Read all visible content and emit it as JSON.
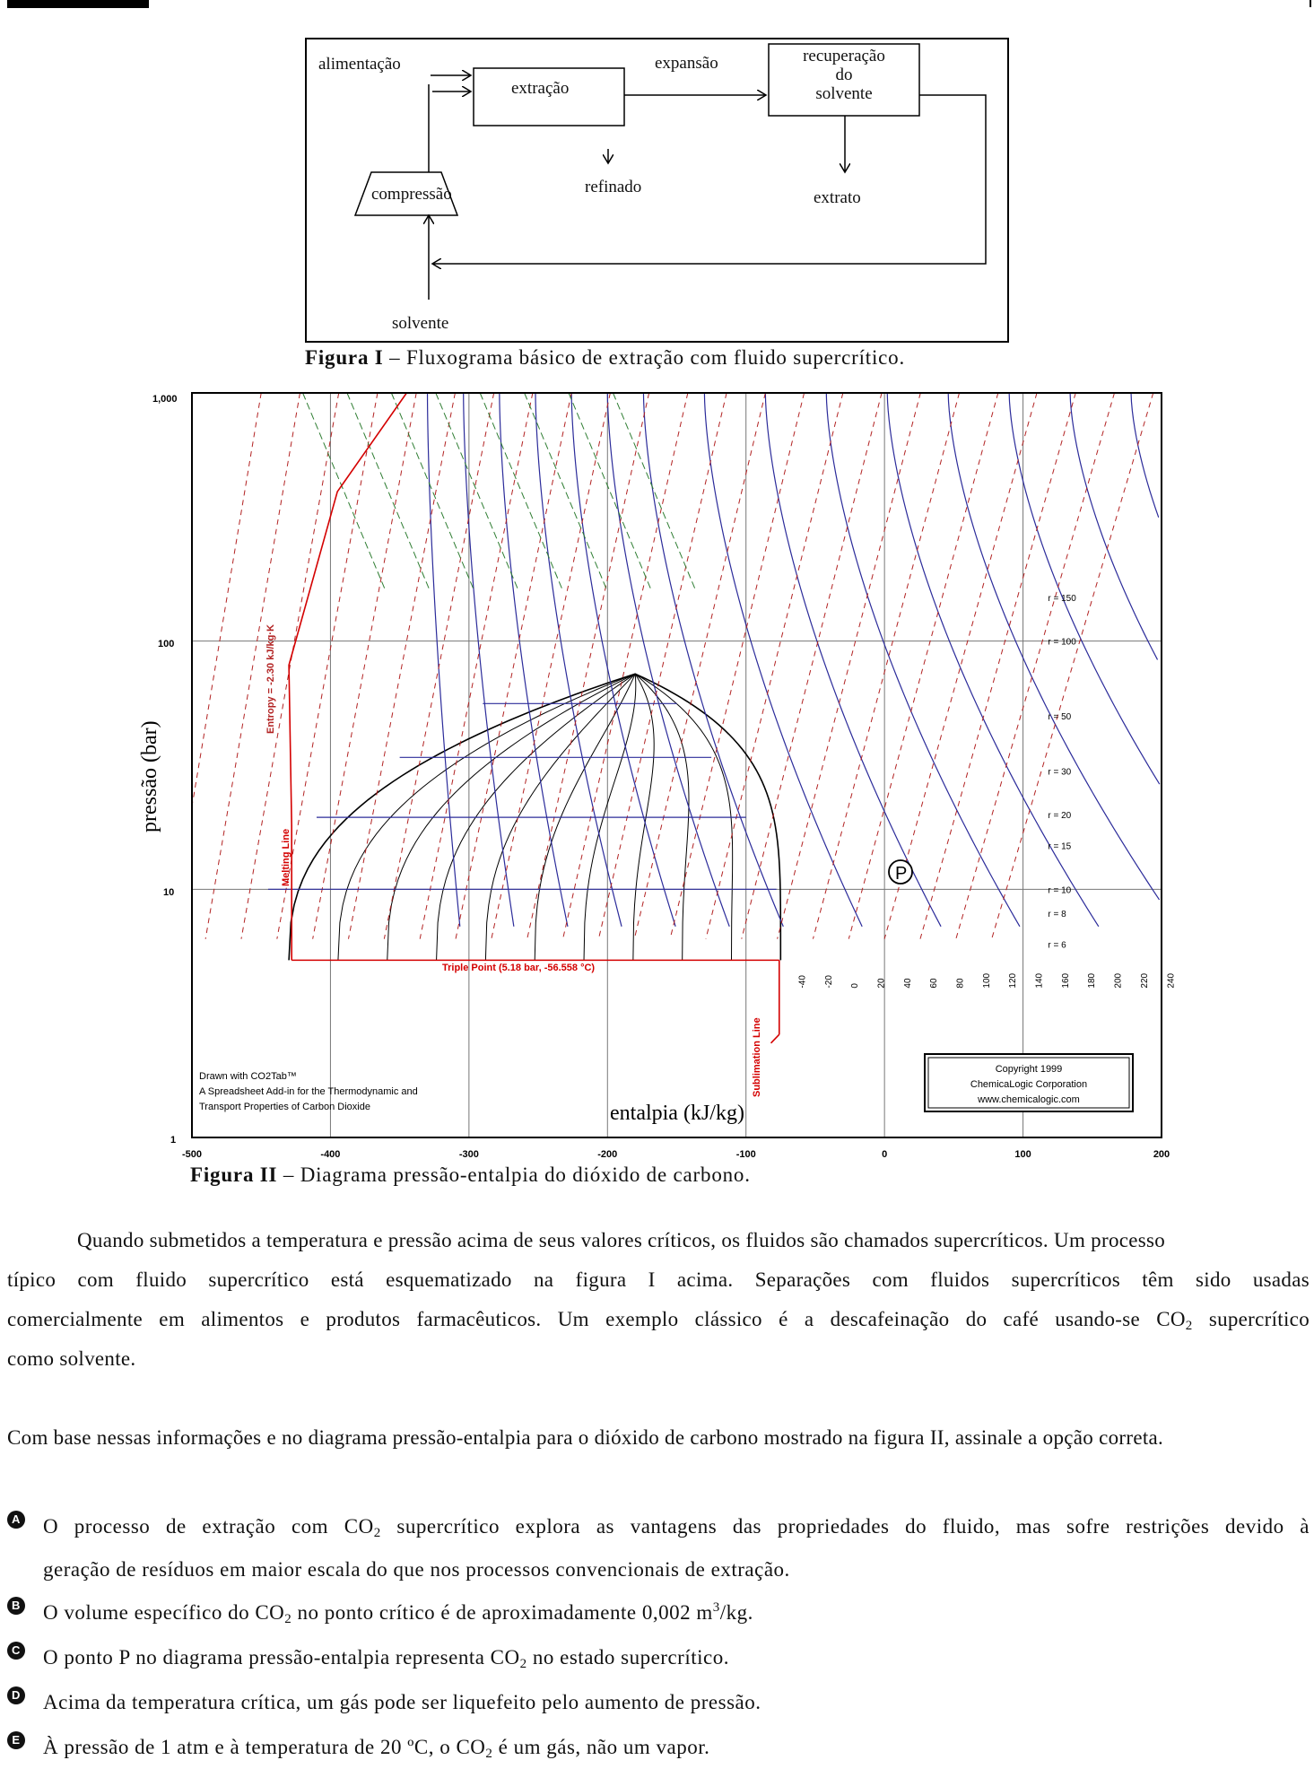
{
  "figure1": {
    "labels": {
      "feed": "alimentação",
      "extraction": "extração",
      "expansion": "expansão",
      "solvent_recovery_1": "recuperação",
      "solvent_recovery_2": "do",
      "solvent_recovery_3": "solvente",
      "compression": "compressão",
      "raffinate": "refinado",
      "extract": "extrato",
      "solvent": "solvente"
    },
    "caption_label": "Figura I",
    "caption_text": " – Fluxograma básico de extração com fluido supercrítico."
  },
  "figure2": {
    "caption_label": "Figura II",
    "caption_text": " – Diagrama pressão-entalpia do dióxido de carbono.",
    "y_ticks": [
      "1,000",
      "100",
      "10",
      "1"
    ],
    "x_ticks": [
      "-500",
      "-400",
      "-300",
      "-200",
      "-100",
      "0",
      "100",
      "200"
    ],
    "ylabel": "pressão (bar)",
    "xlabel": "entalpia (kJ/kg)",
    "triple_point": "Triple Point (5.18 bar, -56.558 °C)",
    "melting_line": "Melting Line",
    "sublimation_line": "Sublimation Line",
    "entropy_label": "Entropy = -2.30 kJ/kg·K",
    "point_label": "P",
    "drawn_with_1": "Drawn with CO2Tab™",
    "drawn_with_2": "A Spreadsheet Add-in for the Thermodynamic and",
    "drawn_with_3": "Transport Properties of Carbon Dioxide",
    "copyright_1": "Copyright 1999",
    "copyright_2": "ChemicaLogic Corporation",
    "copyright_3": "www.chemicalogic.com",
    "density_labels": [
      "r = 150",
      "r = 100",
      "r = 50",
      "r = 30",
      "r = 20",
      "r = 15",
      "r = 10",
      "r = 8",
      "r = 6"
    ],
    "temp_labels": [
      "-40",
      "-20",
      "0",
      "20",
      "40",
      "60",
      "80",
      "100",
      "120",
      "140",
      "160",
      "180",
      "200",
      "220",
      "240"
    ],
    "colors": {
      "grid": "#777777",
      "isotherm": "#2b2b9a",
      "isentrope": "#b22222",
      "dome": "#000000",
      "special": "#d40000",
      "density": "#2e7d32"
    }
  },
  "paragraph": {
    "line1": "Quando submetidos a temperatura e pressão acima de seus valores críticos, os fluidos são chamados supercríticos. Um processo",
    "line2": "típico com fluido supercrítico está esquematizado na figura I acima. Separações com fluidos supercríticos têm sido usadas",
    "line3a": "comercialmente em alimentos e produtos farmacêuticos. Um exemplo clássico é a descafeinação do café usando-se CO",
    "line3sub": "2",
    "line3b": " supercrítico",
    "line4": "como solvente."
  },
  "question": "Com base nessas informações e no diagrama pressão-entalpia para o dióxido de carbono mostrado na figura II, assinale a opção correta.",
  "options": {
    "A": {
      "letter": "A",
      "t1": "O processo de extração com CO",
      "sub": "2",
      "t2": " supercrítico explora as vantagens das propriedades do fluido, mas sofre restrições devido à",
      "t3": "geração de resíduos em maior escala do que nos processos convencionais de extração."
    },
    "B": {
      "letter": "B",
      "t1": "O volume específico do CO",
      "sub": "2",
      "t2": " no ponto crítico é de aproximadamente 0,002 m",
      "sup": "3",
      "t3": "/kg."
    },
    "C": {
      "letter": "C",
      "t1": "O ponto P no diagrama pressão-entalpia representa CO",
      "sub": "2",
      "t2": " no estado supercrítico."
    },
    "D": {
      "letter": "D",
      "t1": "Acima da temperatura crítica, um gás pode ser liquefeito pelo aumento de pressão."
    },
    "E": {
      "letter": "E",
      "t1": "À pressão de 1 atm e à temperatura de 20 ºC, o CO",
      "sub": "2",
      "t2": " é um gás, não um vapor."
    }
  }
}
